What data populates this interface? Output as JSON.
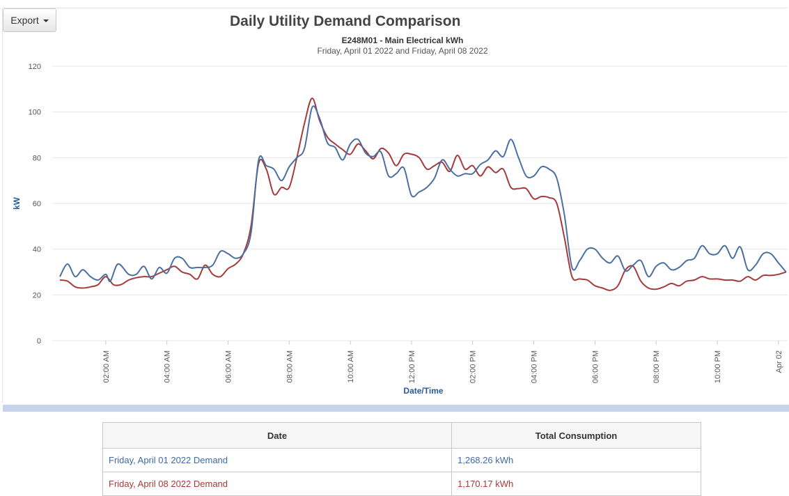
{
  "toolbar": {
    "export_label": "Export"
  },
  "chart_data": {
    "type": "line",
    "title": "Daily Utility Demand Comparison",
    "subtitle": "E248M01 - Main Electrical kWh",
    "subtitle2": "Friday, April 01 2022 and Friday, April 08 2022",
    "ylabel": "kW",
    "xlabel": "Date/Time",
    "ylim": [
      0,
      120
    ],
    "yticks": [
      0,
      20,
      40,
      60,
      80,
      100,
      120
    ],
    "xlim_hours": [
      0.25,
      24.3
    ],
    "xticks": [
      {
        "hour": 2,
        "label": "02:00 AM"
      },
      {
        "hour": 4,
        "label": "04:00 AM"
      },
      {
        "hour": 6,
        "label": "06:00 AM"
      },
      {
        "hour": 8,
        "label": "08:00 AM"
      },
      {
        "hour": 10,
        "label": "10:00 AM"
      },
      {
        "hour": 12,
        "label": "12:00 PM"
      },
      {
        "hour": 14,
        "label": "02:00 PM"
      },
      {
        "hour": 16,
        "label": "04:00 PM"
      },
      {
        "hour": 18,
        "label": "06:00 PM"
      },
      {
        "hour": 20,
        "label": "08:00 PM"
      },
      {
        "hour": 22,
        "label": "10:00 PM"
      },
      {
        "hour": 24,
        "label": "Apr 02"
      }
    ],
    "grid": true,
    "series": [
      {
        "name": "Friday, April 01 2022 Demand",
        "color": "#4a6fa0",
        "points": [
          [
            0.5,
            28
          ],
          [
            0.75,
            33.5
          ],
          [
            1.0,
            28
          ],
          [
            1.25,
            31
          ],
          [
            1.5,
            28
          ],
          [
            1.75,
            26.5
          ],
          [
            2.0,
            29
          ],
          [
            2.15,
            26
          ],
          [
            2.4,
            33.5
          ],
          [
            2.75,
            29
          ],
          [
            3.0,
            29
          ],
          [
            3.25,
            32.5
          ],
          [
            3.5,
            27
          ],
          [
            3.75,
            32
          ],
          [
            4.0,
            29.5
          ],
          [
            4.25,
            36
          ],
          [
            4.5,
            36
          ],
          [
            4.75,
            32
          ],
          [
            5.0,
            32
          ],
          [
            5.25,
            32
          ],
          [
            5.5,
            33
          ],
          [
            5.75,
            39
          ],
          [
            6.0,
            38
          ],
          [
            6.25,
            36
          ],
          [
            6.5,
            38
          ],
          [
            6.75,
            47
          ],
          [
            7.0,
            79
          ],
          [
            7.25,
            76.5
          ],
          [
            7.5,
            75
          ],
          [
            7.75,
            70
          ],
          [
            8.0,
            76
          ],
          [
            8.25,
            80
          ],
          [
            8.5,
            84
          ],
          [
            8.75,
            102
          ],
          [
            9.0,
            97
          ],
          [
            9.25,
            86.5
          ],
          [
            9.5,
            84.5
          ],
          [
            9.75,
            79
          ],
          [
            10.0,
            86
          ],
          [
            10.25,
            88
          ],
          [
            10.5,
            82
          ],
          [
            10.75,
            80.5
          ],
          [
            11.0,
            82.5
          ],
          [
            11.25,
            72
          ],
          [
            11.5,
            73
          ],
          [
            11.75,
            75.5
          ],
          [
            12.0,
            63.5
          ],
          [
            12.25,
            65
          ],
          [
            12.5,
            67
          ],
          [
            12.75,
            71
          ],
          [
            13.0,
            79
          ],
          [
            13.25,
            75
          ],
          [
            13.5,
            72
          ],
          [
            13.75,
            73
          ],
          [
            14.0,
            73
          ],
          [
            14.25,
            77
          ],
          [
            14.5,
            79
          ],
          [
            14.75,
            83
          ],
          [
            15.0,
            80.5
          ],
          [
            15.25,
            88
          ],
          [
            15.5,
            80
          ],
          [
            15.75,
            72
          ],
          [
            16.0,
            72
          ],
          [
            16.25,
            76
          ],
          [
            16.5,
            75
          ],
          [
            16.75,
            71
          ],
          [
            17.0,
            55
          ],
          [
            17.25,
            32
          ],
          [
            17.5,
            35
          ],
          [
            17.75,
            40
          ],
          [
            18.0,
            40
          ],
          [
            18.25,
            36
          ],
          [
            18.5,
            34
          ],
          [
            18.75,
            37
          ],
          [
            19.0,
            30.5
          ],
          [
            19.25,
            33
          ],
          [
            19.5,
            35
          ],
          [
            19.75,
            28
          ],
          [
            20.0,
            32.5
          ],
          [
            20.25,
            34
          ],
          [
            20.5,
            31
          ],
          [
            20.75,
            32
          ],
          [
            21.0,
            35
          ],
          [
            21.25,
            36
          ],
          [
            21.5,
            41.5
          ],
          [
            21.75,
            38
          ],
          [
            22.0,
            38
          ],
          [
            22.25,
            41.5
          ],
          [
            22.5,
            36
          ],
          [
            22.75,
            41
          ],
          [
            23.0,
            31
          ],
          [
            23.25,
            33
          ],
          [
            23.5,
            38
          ],
          [
            23.75,
            38
          ],
          [
            24.0,
            34
          ],
          [
            24.25,
            30
          ]
        ]
      },
      {
        "name": "Friday, April 08 2022 Demand",
        "color": "#a53a3a",
        "points": [
          [
            0.5,
            26.5
          ],
          [
            0.75,
            26
          ],
          [
            1.0,
            23.5
          ],
          [
            1.25,
            23
          ],
          [
            1.5,
            23.5
          ],
          [
            1.75,
            24.5
          ],
          [
            2.0,
            28
          ],
          [
            2.25,
            24.5
          ],
          [
            2.5,
            24.5
          ],
          [
            2.75,
            26.5
          ],
          [
            3.0,
            27.5
          ],
          [
            3.25,
            28
          ],
          [
            3.5,
            28
          ],
          [
            3.75,
            29.5
          ],
          [
            4.0,
            31
          ],
          [
            4.25,
            32.5
          ],
          [
            4.5,
            30
          ],
          [
            4.75,
            29
          ],
          [
            5.0,
            27
          ],
          [
            5.25,
            33
          ],
          [
            5.5,
            29
          ],
          [
            5.75,
            28
          ],
          [
            6.0,
            31.5
          ],
          [
            6.25,
            33.5
          ],
          [
            6.5,
            38
          ],
          [
            6.75,
            50
          ],
          [
            7.0,
            77.5
          ],
          [
            7.25,
            75
          ],
          [
            7.5,
            64
          ],
          [
            7.75,
            67
          ],
          [
            8.0,
            67
          ],
          [
            8.25,
            80
          ],
          [
            8.5,
            95
          ],
          [
            8.75,
            106
          ],
          [
            9.0,
            96
          ],
          [
            9.25,
            89
          ],
          [
            9.5,
            86
          ],
          [
            9.75,
            83.5
          ],
          [
            10.0,
            81.5
          ],
          [
            10.25,
            86
          ],
          [
            10.5,
            83
          ],
          [
            10.75,
            79.5
          ],
          [
            11.0,
            84
          ],
          [
            11.25,
            82
          ],
          [
            11.5,
            76.5
          ],
          [
            11.75,
            81.5
          ],
          [
            12.0,
            81.5
          ],
          [
            12.25,
            80
          ],
          [
            12.5,
            75
          ],
          [
            12.75,
            76.5
          ],
          [
            13.0,
            78
          ],
          [
            13.25,
            74
          ],
          [
            13.5,
            81
          ],
          [
            13.75,
            75
          ],
          [
            14.0,
            76.5
          ],
          [
            14.25,
            72
          ],
          [
            14.5,
            76
          ],
          [
            14.75,
            73.5
          ],
          [
            15.0,
            75
          ],
          [
            15.25,
            67
          ],
          [
            15.5,
            66.5
          ],
          [
            15.75,
            66.5
          ],
          [
            16.0,
            62
          ],
          [
            16.25,
            63
          ],
          [
            16.5,
            62.5
          ],
          [
            16.75,
            60
          ],
          [
            17.0,
            45
          ],
          [
            17.25,
            28
          ],
          [
            17.5,
            27
          ],
          [
            17.75,
            26.5
          ],
          [
            18.0,
            24
          ],
          [
            18.25,
            23
          ],
          [
            18.5,
            22
          ],
          [
            18.75,
            24
          ],
          [
            19.0,
            31
          ],
          [
            19.25,
            32.5
          ],
          [
            19.5,
            26
          ],
          [
            19.75,
            23
          ],
          [
            20.0,
            22.5
          ],
          [
            20.25,
            23.5
          ],
          [
            20.5,
            25
          ],
          [
            20.75,
            24
          ],
          [
            21.0,
            26
          ],
          [
            21.25,
            26.5
          ],
          [
            21.5,
            28
          ],
          [
            21.75,
            27
          ],
          [
            22.0,
            27
          ],
          [
            22.25,
            26.5
          ],
          [
            22.5,
            26.5
          ],
          [
            22.75,
            26
          ],
          [
            23.0,
            28
          ],
          [
            23.25,
            26.5
          ],
          [
            23.5,
            28.5
          ],
          [
            23.75,
            28.5
          ],
          [
            24.0,
            29
          ],
          [
            24.25,
            30
          ]
        ]
      }
    ]
  },
  "summary_table": {
    "headers": [
      "Date",
      "Total Consumption"
    ],
    "rows": [
      {
        "date": "Friday, April 01 2022 Demand",
        "total": "1,268.26 kWh"
      },
      {
        "date": "Friday, April 08 2022 Demand",
        "total": "1,170.17 kWh"
      }
    ]
  }
}
